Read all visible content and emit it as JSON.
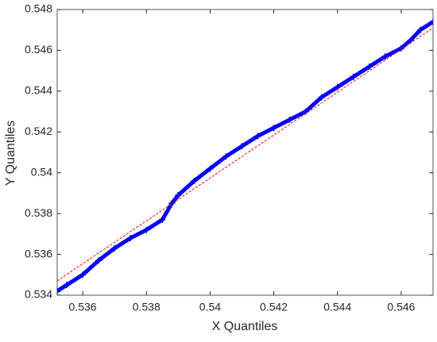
{
  "chart_data": {
    "type": "scatter",
    "xlabel": "X Quantiles",
    "ylabel": "Y Quantiles",
    "xlim": [
      0.5352,
      0.547
    ],
    "ylim": [
      0.534,
      0.548
    ],
    "xticks": [
      0.536,
      0.538,
      0.54,
      0.542,
      0.544,
      0.546
    ],
    "yticks": [
      0.534,
      0.536,
      0.538,
      0.54,
      0.542,
      0.544,
      0.546,
      0.548
    ],
    "series": [
      {
        "color": "#0000ff",
        "marker": "+",
        "x": [
          0.5352,
          0.5355,
          0.536,
          0.5365,
          0.537,
          0.5375,
          0.538,
          0.5385,
          0.5388,
          0.539,
          0.5395,
          0.54,
          0.5405,
          0.541,
          0.5415,
          0.542,
          0.5425,
          0.543,
          0.5435,
          0.544,
          0.5445,
          0.545,
          0.5455,
          0.546,
          0.5463,
          0.5466,
          0.547
        ],
        "values": [
          0.5342,
          0.5345,
          0.535,
          0.5357,
          0.5363,
          0.5368,
          0.5372,
          0.5377,
          0.5385,
          0.5389,
          0.5396,
          0.5402,
          0.5408,
          0.5413,
          0.5418,
          0.5422,
          0.5426,
          0.543,
          0.5437,
          0.5442,
          0.5447,
          0.5452,
          0.5457,
          0.5461,
          0.5465,
          0.547,
          0.5474
        ]
      },
      {
        "color": "#ff0000",
        "dashed": true,
        "x": [
          0.5352,
          0.547
        ],
        "values": [
          0.5347,
          0.5471
        ]
      }
    ]
  }
}
